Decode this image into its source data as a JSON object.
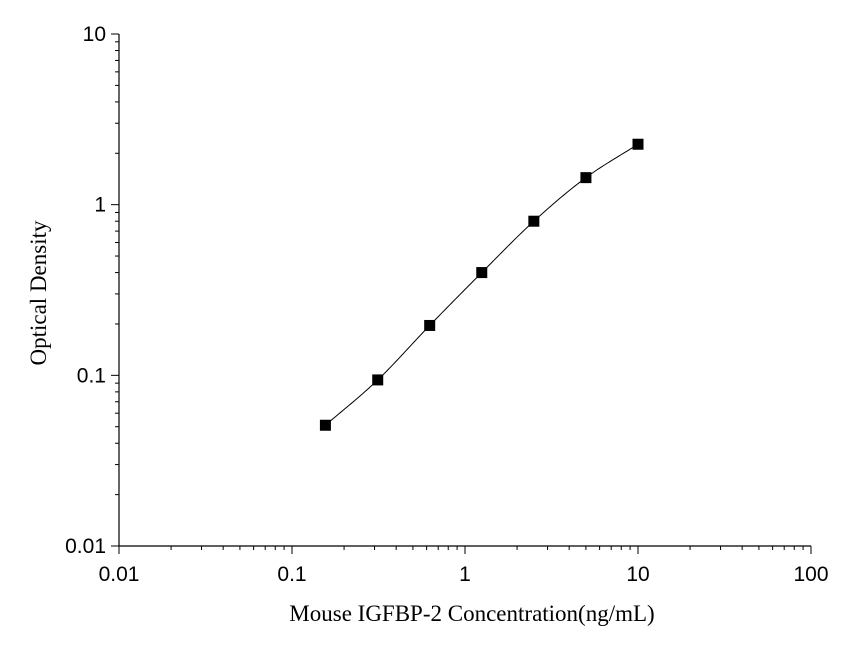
{
  "chart_data": {
    "type": "scatter",
    "title": "",
    "xlabel": "Mouse IGFBP-2 Concentration(ng/mL)",
    "ylabel": "Optical Density",
    "xscale": "log",
    "yscale": "log",
    "xlim": [
      0.01,
      100
    ],
    "ylim": [
      0.01,
      10
    ],
    "x_tick_labels": [
      "0.01",
      "0.1",
      "1",
      "10",
      "100"
    ],
    "y_tick_labels": [
      "0.01",
      "0.1",
      "1",
      "10"
    ],
    "grid": false,
    "series": [
      {
        "marker": "square",
        "fit_curve": true,
        "color": "#000000",
        "x": [
          0.156,
          0.313,
          0.625,
          1.25,
          2.5,
          5,
          10
        ],
        "y": [
          0.051,
          0.094,
          0.196,
          0.4,
          0.8,
          1.44,
          2.26
        ]
      }
    ]
  }
}
